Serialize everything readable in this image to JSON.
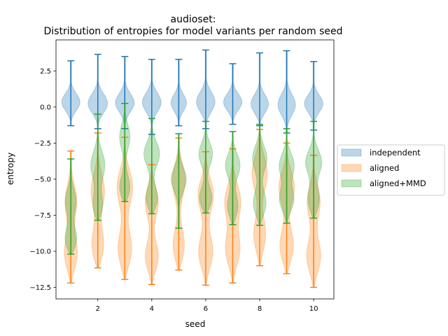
{
  "chart_data": {
    "type": "violin",
    "title": "audioset:",
    "subtitle": "Distribution of entropies for model variants per random seed",
    "xlabel": "seed",
    "ylabel": "entropy",
    "xlim": [
      0.45,
      10.75
    ],
    "ylim": [
      -13.3,
      4.65
    ],
    "x_ticks": [
      2,
      4,
      6,
      8,
      10
    ],
    "y_ticks": [
      2.5,
      0.0,
      -2.5,
      -5.0,
      -7.5,
      -10.0,
      -12.5
    ],
    "x_tick_labels": [
      "2",
      "4",
      "6",
      "8",
      "10"
    ],
    "y_tick_labels": [
      "2.5",
      "0.0",
      "−2.5",
      "−5.0",
      "−7.5",
      "−10.0",
      "−12.5"
    ],
    "legend_position": "outside-right",
    "seeds": [
      1,
      2,
      3,
      4,
      5,
      6,
      7,
      8,
      9,
      10
    ],
    "series": [
      {
        "name": "independent",
        "fill": "#1f77b4",
        "line": "#1f77b4",
        "min": [
          -1.3,
          -1.5,
          -1.5,
          -1.9,
          -1.3,
          -1.5,
          -1.2,
          -1.3,
          -1.8,
          -1.6
        ],
        "max": [
          3.2,
          3.65,
          3.5,
          3.3,
          3.3,
          3.95,
          3.0,
          3.75,
          3.9,
          3.15
        ],
        "peaks": [
          [
            [
              0.3,
              0.35
            ]
          ],
          [
            [
              0.2,
              0.38
            ]
          ],
          [
            [
              0.25,
              0.36
            ]
          ],
          [
            [
              0.3,
              0.35
            ]
          ],
          [
            [
              0.25,
              0.3
            ]
          ],
          [
            [
              0.3,
              0.36
            ]
          ],
          [
            [
              0.3,
              0.35
            ]
          ],
          [
            [
              0.15,
              0.35
            ]
          ],
          [
            [
              0.1,
              0.34
            ]
          ],
          [
            [
              0.2,
              0.35
            ]
          ]
        ]
      },
      {
        "name": "aligned",
        "fill": "#ff7f0e",
        "line": "#ff7f0e",
        "min": [
          -12.2,
          -11.15,
          -11.95,
          -12.3,
          -11.3,
          -12.35,
          -12.2,
          -11.0,
          -11.55,
          -12.5
        ],
        "max": [
          -3.05,
          -1.8,
          -2.1,
          -4.0,
          -2.15,
          -3.1,
          -2.9,
          -1.55,
          -2.5,
          -3.35
        ],
        "peaks": [
          [
            [
              -6.5,
              0.22
            ],
            [
              -10.3,
              0.28
            ]
          ],
          [
            [
              -5.8,
              0.25
            ],
            [
              -9.8,
              0.28
            ]
          ],
          [
            [
              -5.5,
              0.3
            ],
            [
              -10.0,
              0.3
            ]
          ],
          [
            [
              -6.5,
              0.26
            ],
            [
              -10.5,
              0.28
            ]
          ],
          [
            [
              -5.0,
              0.25
            ],
            [
              -9.8,
              0.26
            ]
          ],
          [
            [
              -6.0,
              0.3
            ],
            [
              -10.2,
              0.3
            ]
          ],
          [
            [
              -6.5,
              0.3
            ],
            [
              -10.0,
              0.3
            ]
          ],
          [
            [
              -4.5,
              0.3
            ],
            [
              -9.0,
              0.26
            ]
          ],
          [
            [
              -5.5,
              0.3
            ],
            [
              -9.8,
              0.3
            ]
          ],
          [
            [
              -6.5,
              0.25
            ],
            [
              -10.5,
              0.3
            ]
          ]
        ]
      },
      {
        "name": "aligned+MMD",
        "fill": "#2ca02c",
        "line": "#2ca02c",
        "min": [
          -10.2,
          -7.85,
          -6.55,
          -7.4,
          -8.4,
          -7.35,
          -8.15,
          -8.2,
          -8.05,
          -7.7
        ],
        "max": [
          -3.6,
          -0.5,
          0.25,
          -0.8,
          -1.85,
          -1.0,
          -1.7,
          -1.2,
          -1.5,
          -1.0
        ],
        "peaks": [
          [
            [
              -6.5,
              0.2
            ],
            [
              -9.3,
              0.28
            ]
          ],
          [
            [
              -4.0,
              0.26
            ],
            [
              -7.0,
              0.24
            ]
          ],
          [
            [
              -2.0,
              0.2
            ],
            [
              -5.8,
              0.26
            ]
          ],
          [
            [
              -3.2,
              0.3
            ],
            [
              -6.5,
              0.28
            ]
          ],
          [
            [
              -5.0,
              0.28
            ]
          ],
          [
            [
              -3.2,
              0.26
            ],
            [
              -6.5,
              0.3
            ]
          ],
          [
            [
              -4.0,
              0.28
            ],
            [
              -7.0,
              0.24
            ]
          ],
          [
            [
              -3.5,
              0.28
            ],
            [
              -6.8,
              0.28
            ]
          ],
          [
            [
              -4.0,
              0.28
            ],
            [
              -6.5,
              0.3
            ]
          ],
          [
            [
              -3.8,
              0.3
            ],
            [
              -6.6,
              0.26
            ]
          ]
        ]
      }
    ]
  }
}
